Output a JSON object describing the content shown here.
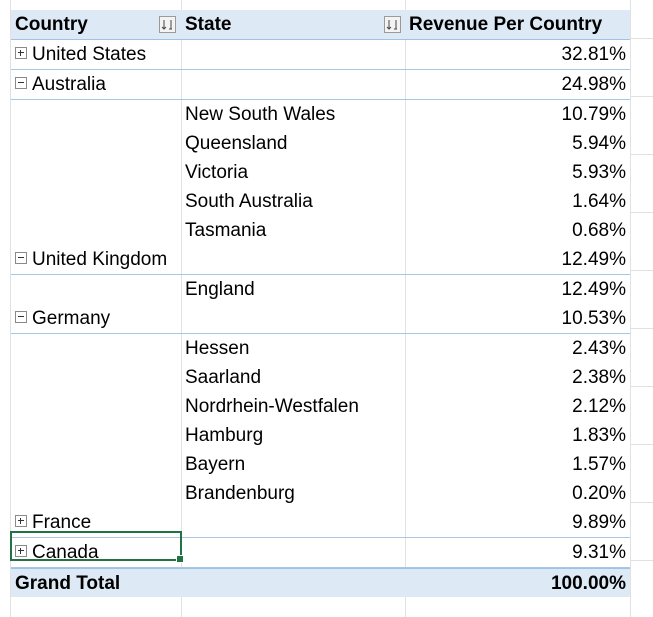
{
  "pivot": {
    "headers": {
      "country": "Country",
      "state": "State",
      "revenue": "Revenue Per Country"
    },
    "rows": [
      {
        "type": "country",
        "expander": "plus",
        "country": "United States",
        "state": "",
        "value": "32.81%"
      },
      {
        "type": "country",
        "expander": "minus",
        "country": "Australia",
        "state": "",
        "value": "24.98%"
      },
      {
        "type": "state",
        "country": "",
        "state": "New South Wales",
        "value": "10.79%"
      },
      {
        "type": "state",
        "country": "",
        "state": "Queensland",
        "value": "5.94%"
      },
      {
        "type": "state",
        "country": "",
        "state": "Victoria",
        "value": "5.93%"
      },
      {
        "type": "state",
        "country": "",
        "state": "South Australia",
        "value": "1.64%"
      },
      {
        "type": "state",
        "country": "",
        "state": "Tasmania",
        "value": "0.68%"
      },
      {
        "type": "country",
        "expander": "minus",
        "country": "United Kingdom",
        "state": "",
        "value": "12.49%"
      },
      {
        "type": "state",
        "country": "",
        "state": "England",
        "value": "12.49%"
      },
      {
        "type": "country",
        "expander": "minus",
        "country": "Germany",
        "state": "",
        "value": "10.53%"
      },
      {
        "type": "state",
        "country": "",
        "state": "Hessen",
        "value": "2.43%"
      },
      {
        "type": "state",
        "country": "",
        "state": "Saarland",
        "value": "2.38%"
      },
      {
        "type": "state",
        "country": "",
        "state": "Nordrhein-Westfalen",
        "value": "2.12%"
      },
      {
        "type": "state",
        "country": "",
        "state": "Hamburg",
        "value": "1.83%"
      },
      {
        "type": "state",
        "country": "",
        "state": "Bayern",
        "value": "1.57%"
      },
      {
        "type": "state",
        "country": "",
        "state": "Brandenburg",
        "value": "0.20%"
      },
      {
        "type": "country",
        "expander": "plus",
        "country": "France",
        "state": "",
        "value": "9.89%"
      },
      {
        "type": "country",
        "expander": "plus",
        "country": "Canada",
        "state": "",
        "value": "9.31%",
        "selected": true
      }
    ],
    "total": {
      "label": "Grand Total",
      "value": "100.00%"
    }
  }
}
